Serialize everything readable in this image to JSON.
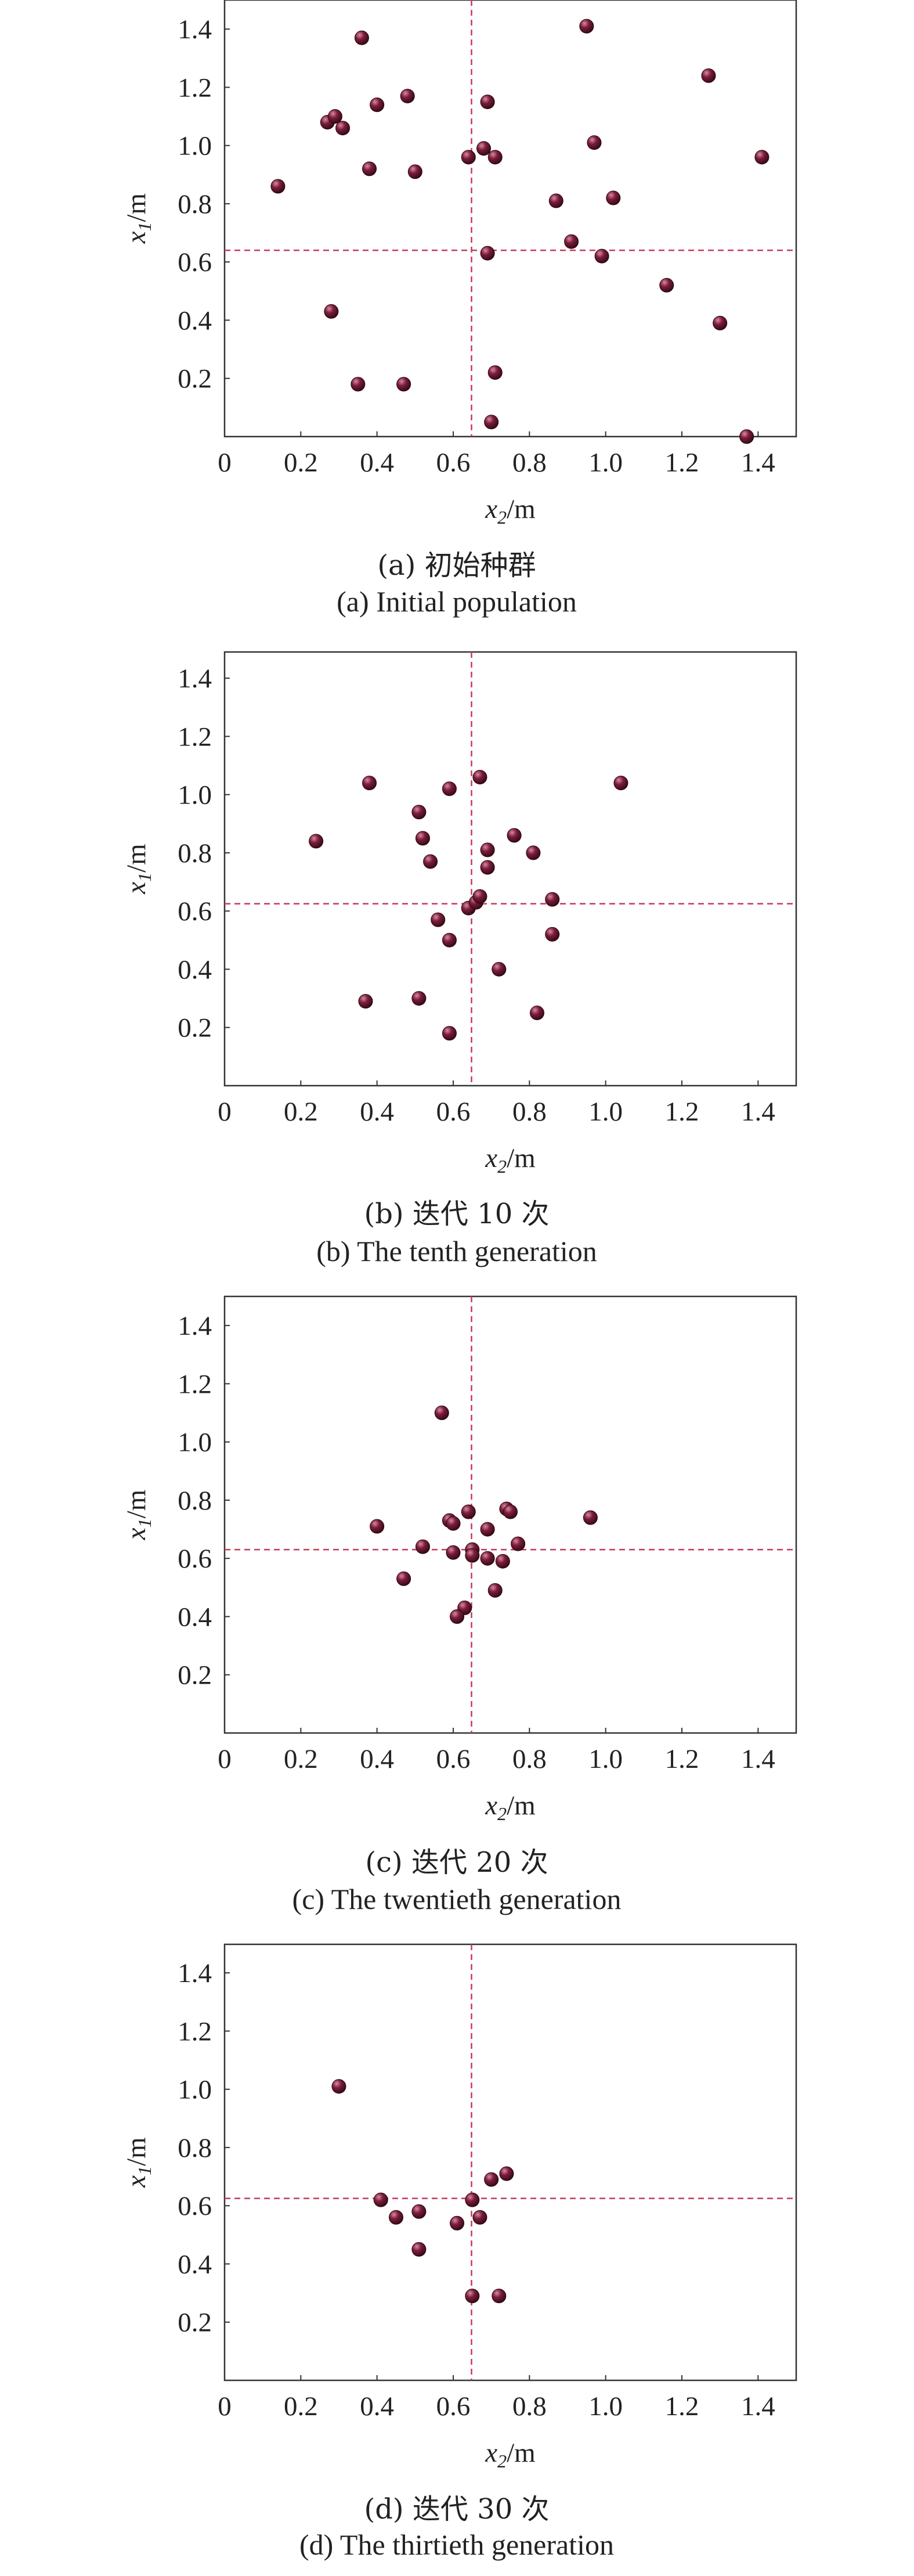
{
  "colors": {
    "point_fill": "#7a1d3a",
    "point_highlight": "#d98aa0",
    "reference_line": "#c43a5a",
    "frame": "#333333"
  },
  "chart_data": [
    {
      "type": "scatter",
      "panel_id": "a",
      "caption_cn": "(a) 初始种群",
      "caption_en": "(a) Initial population",
      "xlabel": "x2/m",
      "ylabel": "x1/m",
      "xlim": [
        0,
        1.5
      ],
      "ylim": [
        0,
        1.5
      ],
      "xticks": [
        "0",
        "0.2",
        "0.4",
        "0.6",
        "0.8",
        "1.0",
        "1.2",
        "1.4"
      ],
      "yticks": [
        "0.2",
        "0.4",
        "0.6",
        "0.8",
        "1.0",
        "1.2",
        "1.4"
      ],
      "reference_lines": {
        "x": 0.648,
        "y": 0.64
      },
      "points": [
        {
          "x": 0.14,
          "y": 0.86
        },
        {
          "x": 0.27,
          "y": 1.08
        },
        {
          "x": 0.29,
          "y": 1.1
        },
        {
          "x": 0.31,
          "y": 1.06
        },
        {
          "x": 0.36,
          "y": 1.37
        },
        {
          "x": 0.38,
          "y": 0.92
        },
        {
          "x": 0.4,
          "y": 1.14
        },
        {
          "x": 0.48,
          "y": 1.17
        },
        {
          "x": 0.5,
          "y": 0.91
        },
        {
          "x": 0.64,
          "y": 0.96
        },
        {
          "x": 0.68,
          "y": 0.99
        },
        {
          "x": 0.69,
          "y": 1.15
        },
        {
          "x": 0.71,
          "y": 0.96
        },
        {
          "x": 0.95,
          "y": 1.41
        },
        {
          "x": 0.97,
          "y": 1.01
        },
        {
          "x": 1.27,
          "y": 1.24
        },
        {
          "x": 1.41,
          "y": 0.96
        },
        {
          "x": 0.87,
          "y": 0.81
        },
        {
          "x": 1.02,
          "y": 0.82
        },
        {
          "x": 0.91,
          "y": 0.67
        },
        {
          "x": 0.69,
          "y": 0.63
        },
        {
          "x": 0.99,
          "y": 0.62
        },
        {
          "x": 1.16,
          "y": 0.52
        },
        {
          "x": 1.3,
          "y": 0.39
        },
        {
          "x": 0.28,
          "y": 0.43
        },
        {
          "x": 0.35,
          "y": 0.18
        },
        {
          "x": 0.47,
          "y": 0.18
        },
        {
          "x": 0.71,
          "y": 0.22
        },
        {
          "x": 0.7,
          "y": 0.05
        },
        {
          "x": 1.37,
          "y": 0.0
        }
      ]
    },
    {
      "type": "scatter",
      "panel_id": "b",
      "caption_cn": "(b) 迭代 10 次",
      "caption_en": "(b) The tenth generation",
      "xlabel": "x2/m",
      "ylabel": "x1/m",
      "xlim": [
        0,
        1.5
      ],
      "ylim": [
        0,
        1.5
      ],
      "xticks": [
        "0",
        "0.2",
        "0.4",
        "0.6",
        "0.8",
        "1.0",
        "1.2",
        "1.4"
      ],
      "yticks": [
        "0.2",
        "0.4",
        "0.6",
        "0.8",
        "1.0",
        "1.2",
        "1.4"
      ],
      "reference_lines": {
        "x": 0.648,
        "y": 0.625
      },
      "points": [
        {
          "x": 0.24,
          "y": 0.84
        },
        {
          "x": 0.38,
          "y": 1.04
        },
        {
          "x": 0.37,
          "y": 0.29
        },
        {
          "x": 0.51,
          "y": 0.94
        },
        {
          "x": 0.52,
          "y": 0.85
        },
        {
          "x": 0.54,
          "y": 0.77
        },
        {
          "x": 0.56,
          "y": 0.57
        },
        {
          "x": 0.59,
          "y": 1.02
        },
        {
          "x": 0.59,
          "y": 0.5
        },
        {
          "x": 0.51,
          "y": 0.3
        },
        {
          "x": 0.59,
          "y": 0.18
        },
        {
          "x": 0.67,
          "y": 1.06
        },
        {
          "x": 0.69,
          "y": 0.81
        },
        {
          "x": 0.69,
          "y": 0.75
        },
        {
          "x": 0.64,
          "y": 0.61
        },
        {
          "x": 0.66,
          "y": 0.63
        },
        {
          "x": 0.67,
          "y": 0.65
        },
        {
          "x": 0.76,
          "y": 0.86
        },
        {
          "x": 0.81,
          "y": 0.8
        },
        {
          "x": 0.86,
          "y": 0.64
        },
        {
          "x": 0.86,
          "y": 0.52
        },
        {
          "x": 0.72,
          "y": 0.4
        },
        {
          "x": 0.82,
          "y": 0.25
        },
        {
          "x": 1.04,
          "y": 1.04
        }
      ]
    },
    {
      "type": "scatter",
      "panel_id": "c",
      "caption_cn": "(c) 迭代 20 次",
      "caption_en": "(c) The twentieth generation",
      "xlabel": "x2/m",
      "ylabel": "x1/m",
      "xlim": [
        0,
        1.5
      ],
      "ylim": [
        0,
        1.5
      ],
      "xticks": [
        "0",
        "0.2",
        "0.4",
        "0.6",
        "0.8",
        "1.0",
        "1.2",
        "1.4"
      ],
      "yticks": [
        "0.2",
        "0.4",
        "0.6",
        "0.8",
        "1.0",
        "1.2",
        "1.4"
      ],
      "reference_lines": {
        "x": 0.648,
        "y": 0.63
      },
      "points": [
        {
          "x": 0.57,
          "y": 1.1
        },
        {
          "x": 0.4,
          "y": 0.71
        },
        {
          "x": 0.52,
          "y": 0.64
        },
        {
          "x": 0.47,
          "y": 0.53
        },
        {
          "x": 0.59,
          "y": 0.73
        },
        {
          "x": 0.6,
          "y": 0.72
        },
        {
          "x": 0.6,
          "y": 0.62
        },
        {
          "x": 0.63,
          "y": 0.43
        },
        {
          "x": 0.61,
          "y": 0.4
        },
        {
          "x": 0.64,
          "y": 0.76
        },
        {
          "x": 0.65,
          "y": 0.63
        },
        {
          "x": 0.65,
          "y": 0.61
        },
        {
          "x": 0.69,
          "y": 0.7
        },
        {
          "x": 0.69,
          "y": 0.6
        },
        {
          "x": 0.71,
          "y": 0.49
        },
        {
          "x": 0.73,
          "y": 0.59
        },
        {
          "x": 0.74,
          "y": 0.77
        },
        {
          "x": 0.75,
          "y": 0.76
        },
        {
          "x": 0.77,
          "y": 0.65
        },
        {
          "x": 0.96,
          "y": 0.74
        }
      ]
    },
    {
      "type": "scatter",
      "panel_id": "d",
      "caption_cn": "(d) 迭代 30 次",
      "caption_en": "(d) The thirtieth generation",
      "xlabel": "x2/m",
      "ylabel": "x1/m",
      "xlim": [
        0,
        1.5
      ],
      "ylim": [
        0,
        1.5
      ],
      "xticks": [
        "0",
        "0.2",
        "0.4",
        "0.6",
        "0.8",
        "1.0",
        "1.2",
        "1.4"
      ],
      "yticks": [
        "0.2",
        "0.4",
        "0.6",
        "0.8",
        "1.0",
        "1.2",
        "1.4"
      ],
      "reference_lines": {
        "x": 0.648,
        "y": 0.625
      },
      "points": [
        {
          "x": 0.3,
          "y": 1.01
        },
        {
          "x": 0.41,
          "y": 0.62
        },
        {
          "x": 0.45,
          "y": 0.56
        },
        {
          "x": 0.51,
          "y": 0.58
        },
        {
          "x": 0.51,
          "y": 0.45
        },
        {
          "x": 0.61,
          "y": 0.54
        },
        {
          "x": 0.65,
          "y": 0.62
        },
        {
          "x": 0.67,
          "y": 0.56
        },
        {
          "x": 0.7,
          "y": 0.69
        },
        {
          "x": 0.74,
          "y": 0.71
        },
        {
          "x": 0.65,
          "y": 0.29
        },
        {
          "x": 0.72,
          "y": 0.29
        }
      ]
    }
  ]
}
